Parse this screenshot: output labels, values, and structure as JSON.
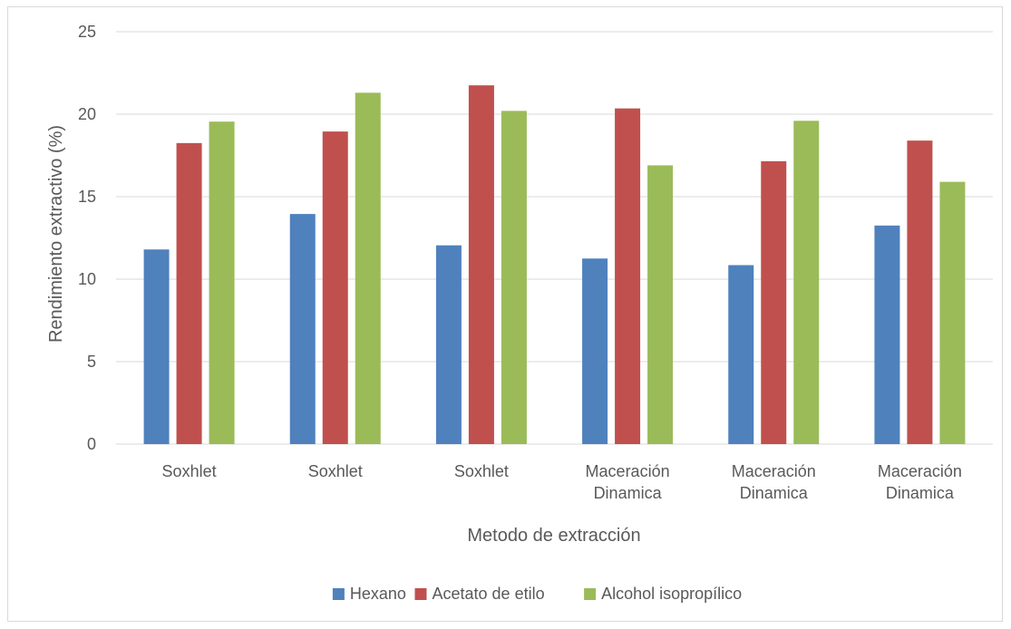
{
  "chart_data": {
    "type": "bar",
    "title": "",
    "xlabel": "Metodo de extracción",
    "ylabel": "Rendimiento extractivo (%)",
    "ylim": [
      0,
      25
    ],
    "yticks": [
      0,
      5,
      10,
      15,
      20,
      25
    ],
    "grid": true,
    "legend_position": "bottom",
    "categories": [
      [
        "Soxhlet"
      ],
      [
        "Soxhlet"
      ],
      [
        "Soxhlet"
      ],
      [
        "Maceración",
        "Dinamica"
      ],
      [
        "Maceración",
        "Dinamica"
      ],
      [
        "Maceración",
        "Dinamica"
      ]
    ],
    "series": [
      {
        "name": "Hexano",
        "color": "#4f81bd",
        "values": [
          11.8,
          13.95,
          12.05,
          11.25,
          10.85,
          13.25
        ]
      },
      {
        "name": "Acetato de etilo",
        "color": "#c0504d",
        "values": [
          18.25,
          18.95,
          21.75,
          20.35,
          17.15,
          18.4
        ]
      },
      {
        "name": "Alcohol isopropílico",
        "color": "#9bbb59",
        "values": [
          19.55,
          21.3,
          20.2,
          16.9,
          19.6,
          15.9
        ]
      }
    ]
  }
}
